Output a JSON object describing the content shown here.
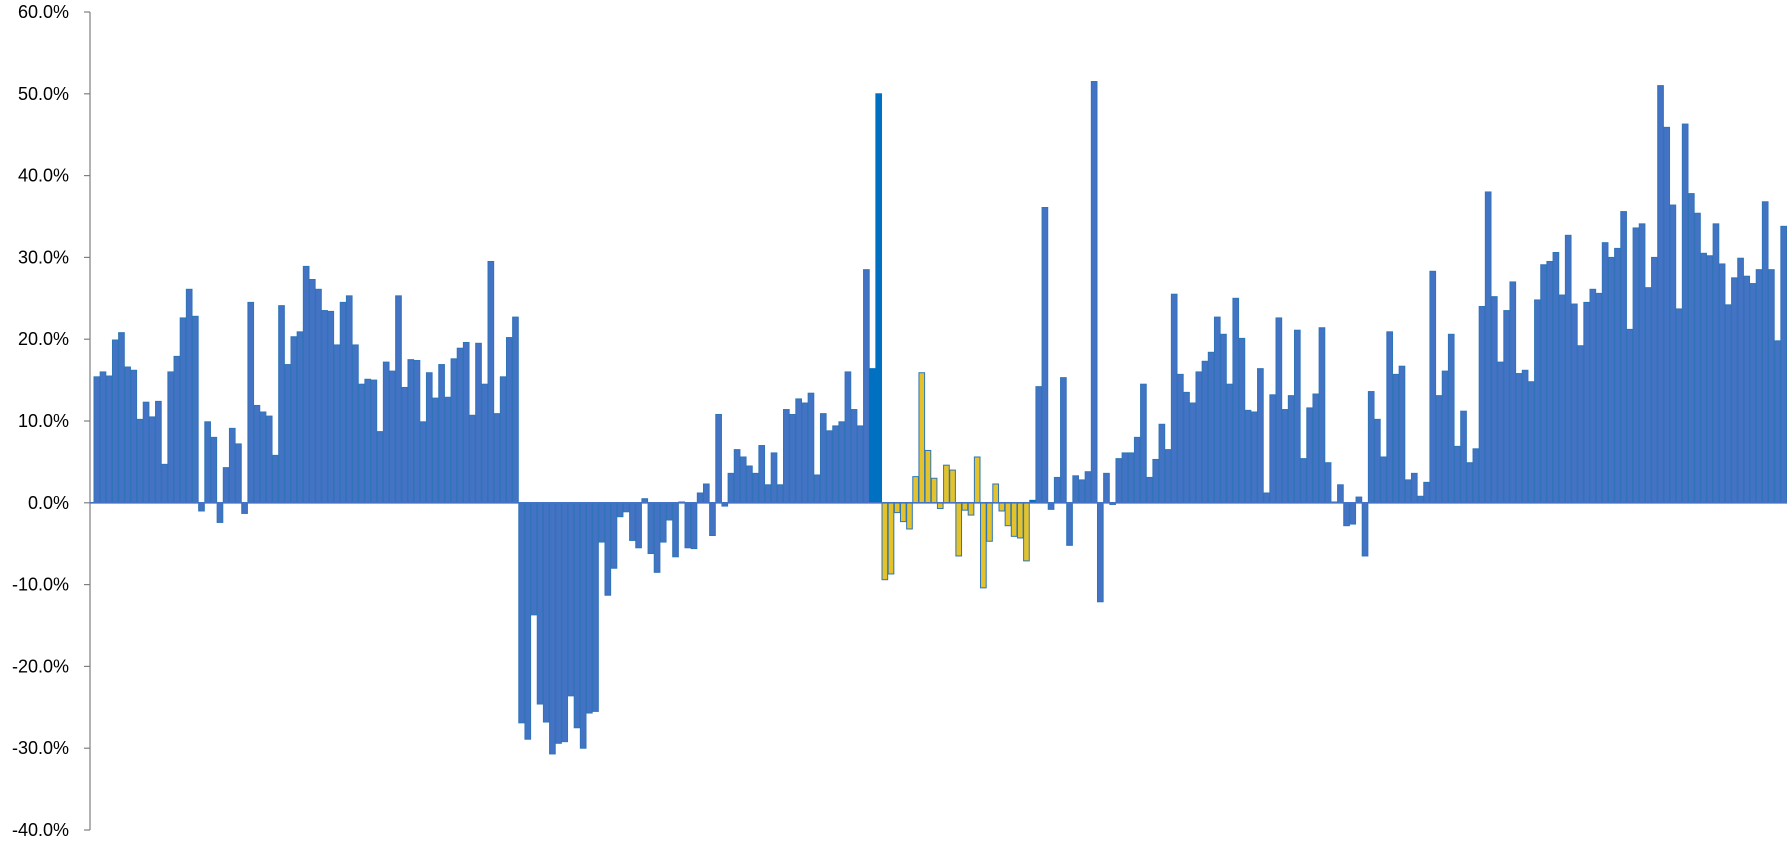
{
  "chart_data": {
    "type": "bar",
    "title": "",
    "xlabel": "",
    "ylabel": "",
    "ylim": [
      -40,
      60
    ],
    "y_ticks": [
      "60.0%",
      "50.0%",
      "40.0%",
      "30.0%",
      "20.0%",
      "10.0%",
      "0.0%",
      "-10.0%",
      "-20.0%",
      "-30.0%",
      "-40.0%"
    ],
    "y_tick_values": [
      60,
      50,
      40,
      30,
      20,
      10,
      0,
      -10,
      -20,
      -30,
      -40
    ],
    "grid": false,
    "legend": "none",
    "colors": {
      "default": "#4472c4",
      "default_edge": "#2e75b6",
      "highlight_dark": "#0070c0",
      "highlight_yellow": "#e3c22c",
      "yellow_edge": "#2e75b6",
      "axis": "#7f7f7f"
    },
    "values": [
      15.4,
      16.0,
      15.5,
      19.9,
      20.8,
      16.6,
      16.2,
      10.2,
      12.3,
      10.5,
      12.4,
      4.7,
      16.0,
      17.9,
      22.6,
      26.1,
      22.8,
      -1.0,
      9.9,
      8.0,
      -2.4,
      4.3,
      9.1,
      7.2,
      -1.3,
      24.5,
      11.9,
      11.1,
      10.6,
      5.8,
      24.1,
      16.9,
      20.3,
      20.9,
      28.9,
      27.3,
      26.1,
      23.5,
      23.4,
      19.3,
      24.5,
      25.3,
      19.3,
      14.5,
      15.1,
      15.0,
      8.7,
      17.2,
      16.1,
      25.3,
      14.1,
      17.5,
      17.4,
      9.9,
      15.9,
      12.8,
      16.9,
      12.9,
      17.6,
      18.9,
      19.6,
      10.7,
      19.5,
      14.5,
      29.5,
      10.9,
      15.4,
      20.2,
      22.7,
      -26.9,
      -28.9,
      -13.7,
      -24.6,
      -26.8,
      -30.7,
      -29.4,
      -29.2,
      -23.6,
      -27.5,
      -30.0,
      -25.7,
      -25.5,
      -4.8,
      -11.3,
      -8.0,
      -1.7,
      -1.1,
      -4.6,
      -5.5,
      0.5,
      -6.2,
      -8.5,
      -4.8,
      -2.1,
      -6.6,
      0.1,
      -5.5,
      -5.6,
      1.2,
      2.3,
      -4.0,
      10.8,
      -0.4,
      3.6,
      6.5,
      5.6,
      4.5,
      3.6,
      7.0,
      2.2,
      6.1,
      2.2,
      11.4,
      10.8,
      12.7,
      12.2,
      13.4,
      3.4,
      10.9,
      8.8,
      9.4,
      9.9,
      16.0,
      11.4,
      9.4,
      28.5,
      16.4,
      50.0,
      -9.4,
      -8.7,
      -1.2,
      -2.3,
      -3.2,
      3.2,
      15.9,
      6.4,
      3.0,
      -0.7,
      4.6,
      4.0,
      -6.5,
      -0.9,
      -1.5,
      5.6,
      -10.4,
      -4.7,
      2.3,
      -1.0,
      -2.8,
      -4.1,
      -4.3,
      -7.1,
      0.3,
      14.2,
      36.1,
      -0.8,
      3.1,
      15.3,
      -5.2,
      3.3,
      2.8,
      3.8,
      51.5,
      -12.1,
      3.6,
      -0.2,
      5.4,
      6.1,
      6.1,
      8.0,
      14.5,
      3.1,
      5.3,
      9.6,
      6.5,
      25.5,
      15.7,
      13.5,
      12.2,
      16.0,
      17.3,
      18.4,
      22.7,
      20.6,
      14.5,
      25.0,
      20.1,
      11.3,
      11.1,
      16.4,
      1.2,
      13.2,
      22.6,
      11.4,
      13.1,
      21.1,
      5.4,
      11.6,
      13.3,
      21.4,
      4.9,
      0.1,
      2.2,
      -2.8,
      -2.6,
      0.7,
      -6.5,
      13.6,
      10.2,
      5.6,
      20.9,
      15.7,
      16.7,
      2.8,
      3.6,
      0.8,
      2.5,
      28.3,
      13.1,
      16.1,
      20.6,
      6.9,
      11.2,
      4.9,
      6.6,
      24.0,
      38.0,
      25.2,
      17.2,
      23.5,
      27.0,
      15.8,
      16.2,
      14.8,
      24.8,
      29.1,
      29.5,
      30.6,
      25.4,
      32.7,
      24.3,
      19.2,
      24.5,
      26.1,
      25.6,
      31.8,
      30.0,
      31.1,
      35.6,
      21.2,
      33.6,
      34.1,
      26.3,
      30.0,
      51.0,
      45.9,
      36.4,
      23.7,
      46.3,
      37.8,
      35.4,
      30.5,
      30.2,
      34.1,
      29.2,
      24.2,
      27.5,
      29.9,
      27.7,
      26.8,
      28.5,
      36.8,
      28.5,
      19.8,
      33.8
    ],
    "highlight_dark_indices": [
      126,
      127,
      152
    ],
    "highlight_yellow_range": [
      128,
      151
    ]
  }
}
